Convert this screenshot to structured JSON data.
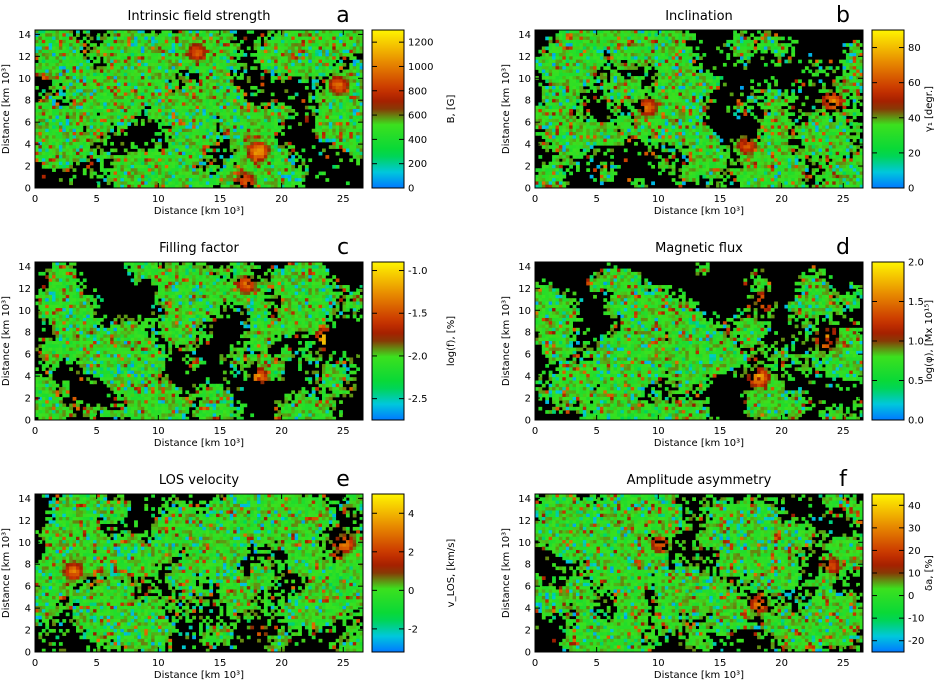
{
  "chart_data": [
    {
      "type": "heatmap",
      "letter": "a",
      "title": "Intrinsic field strength",
      "xlabel": "Distance [km 10³]",
      "ylabel": "Distance [km 10³]",
      "colorbar_label": "B, [G]",
      "xlim": [
        0,
        26.6
      ],
      "ylim": [
        0,
        14.4
      ],
      "xticks": [
        0,
        5,
        10,
        15,
        20,
        25
      ],
      "yticks": [
        0,
        2,
        4,
        6,
        8,
        10,
        12,
        14
      ],
      "clim": [
        0,
        1300
      ],
      "cticks": [
        "0",
        "200",
        "400",
        "600",
        "800",
        "1000",
        "1200"
      ],
      "cvals": [
        0,
        200,
        400,
        600,
        800,
        1000,
        1200
      ],
      "coverage": 0.55,
      "seed": 11,
      "hotspots": [
        {
          "x": 18,
          "y": 3.5,
          "v": 0.85
        },
        {
          "x": 24.5,
          "y": 9.5,
          "v": 0.75
        },
        {
          "x": 17,
          "y": 0.8,
          "v": 0.7
        },
        {
          "x": 13,
          "y": 12.5,
          "v": 0.7
        }
      ]
    },
    {
      "type": "heatmap",
      "letter": "b",
      "title": "Inclination",
      "xlabel": "Distance [km 10³]",
      "ylabel": "Distance [km 10³]",
      "colorbar_label": "γ₁ [degr.]",
      "xlim": [
        0,
        26.6
      ],
      "ylim": [
        0,
        14.4
      ],
      "xticks": [
        0,
        5,
        10,
        15,
        20,
        25
      ],
      "yticks": [
        0,
        2,
        4,
        6,
        8,
        10,
        12,
        14
      ],
      "clim": [
        0,
        90
      ],
      "cticks": [
        "0",
        "20",
        "40",
        "60",
        "80"
      ],
      "cvals": [
        0,
        20,
        40,
        60,
        80
      ],
      "coverage": 0.5,
      "seed": 23,
      "hotspots": [
        {
          "x": 24,
          "y": 8,
          "v": 0.8
        },
        {
          "x": 9,
          "y": 7.5,
          "v": 0.75
        },
        {
          "x": 17,
          "y": 4,
          "v": 0.7
        }
      ]
    },
    {
      "type": "heatmap",
      "letter": "c",
      "title": "Filling factor",
      "xlabel": "Distance [km 10³]",
      "ylabel": "Distance [km 10³]",
      "colorbar_label": "log(f), [%]",
      "xlim": [
        0,
        26.6
      ],
      "ylim": [
        0,
        14.4
      ],
      "xticks": [
        0,
        5,
        10,
        15,
        20,
        25
      ],
      "yticks": [
        0,
        2,
        4,
        6,
        8,
        10,
        12,
        14
      ],
      "clim": [
        -2.75,
        -0.9
      ],
      "cticks": [
        "-2.5",
        "-2.0",
        "-1.5",
        "-1.0"
      ],
      "cvals": [
        -2.5,
        -2.0,
        -1.5,
        -1.0
      ],
      "coverage": 0.38,
      "seed": 37,
      "hotspots": [
        {
          "x": 23.5,
          "y": 7.5,
          "v": 0.95
        },
        {
          "x": 18,
          "y": 4,
          "v": 0.8
        },
        {
          "x": 17,
          "y": 12.5,
          "v": 0.75
        }
      ]
    },
    {
      "type": "heatmap",
      "letter": "d",
      "title": "Magnetic flux",
      "xlabel": "Distance [km 10³]",
      "ylabel": "Distance [km 10³]",
      "colorbar_label": "log(φ), [Mx 10¹⁵]",
      "xlim": [
        0,
        26.6
      ],
      "ylim": [
        0,
        14.4
      ],
      "xticks": [
        0,
        5,
        10,
        15,
        20,
        25
      ],
      "yticks": [
        0,
        2,
        4,
        6,
        8,
        10,
        12,
        14
      ],
      "clim": [
        0,
        2.0
      ],
      "cticks": [
        "0.0",
        "0.5",
        "1.0",
        "1.5",
        "2.0"
      ],
      "cvals": [
        0,
        0.5,
        1.0,
        1.5,
        2.0
      ],
      "coverage": 0.38,
      "seed": 41,
      "hotspots": [
        {
          "x": 23.5,
          "y": 7.5,
          "v": 0.9
        },
        {
          "x": 18,
          "y": 4,
          "v": 0.85
        },
        {
          "x": 18.5,
          "y": 11,
          "v": 0.8
        }
      ]
    },
    {
      "type": "heatmap",
      "letter": "e",
      "title": "LOS velocity",
      "xlabel": "Distance [km 10³]",
      "ylabel": "Distance [km 10³]",
      "colorbar_label": "v_LOS, [km/s]",
      "xlim": [
        0,
        26.6
      ],
      "ylim": [
        0,
        14.4
      ],
      "xticks": [
        0,
        5,
        10,
        15,
        20,
        25
      ],
      "yticks": [
        0,
        2,
        4,
        6,
        8,
        10,
        12,
        14
      ],
      "clim": [
        -3.2,
        5.0
      ],
      "cticks": [
        "-2",
        "0",
        "2",
        "4"
      ],
      "cvals": [
        -2,
        0,
        2,
        4
      ],
      "coverage": 0.55,
      "seed": 53,
      "hotspots": [
        {
          "x": 25,
          "y": 10,
          "v": 0.8
        },
        {
          "x": 3,
          "y": 7.5,
          "v": 0.75
        },
        {
          "x": 18,
          "y": 2,
          "v": 0.7
        }
      ]
    },
    {
      "type": "heatmap",
      "letter": "f",
      "title": "Amplitude asymmetry",
      "xlabel": "Distance [km 10³]",
      "ylabel": "Distance [km 10³]",
      "colorbar_label": "δa, [%]",
      "xlim": [
        0,
        26.6
      ],
      "ylim": [
        0,
        14.4
      ],
      "xticks": [
        0,
        5,
        10,
        15,
        20,
        25
      ],
      "yticks": [
        0,
        2,
        4,
        6,
        8,
        10,
        12,
        14
      ],
      "clim": [
        -25,
        45
      ],
      "cticks": [
        "-20",
        "-10",
        "0",
        "10",
        "20",
        "30",
        "40"
      ],
      "cvals": [
        -20,
        -10,
        0,
        10,
        20,
        30,
        40
      ],
      "coverage": 0.55,
      "seed": 67,
      "hotspots": [
        {
          "x": 18,
          "y": 4.5,
          "v": 0.75
        },
        {
          "x": 10,
          "y": 10,
          "v": 0.7
        },
        {
          "x": 24,
          "y": 8,
          "v": 0.65
        }
      ]
    }
  ]
}
